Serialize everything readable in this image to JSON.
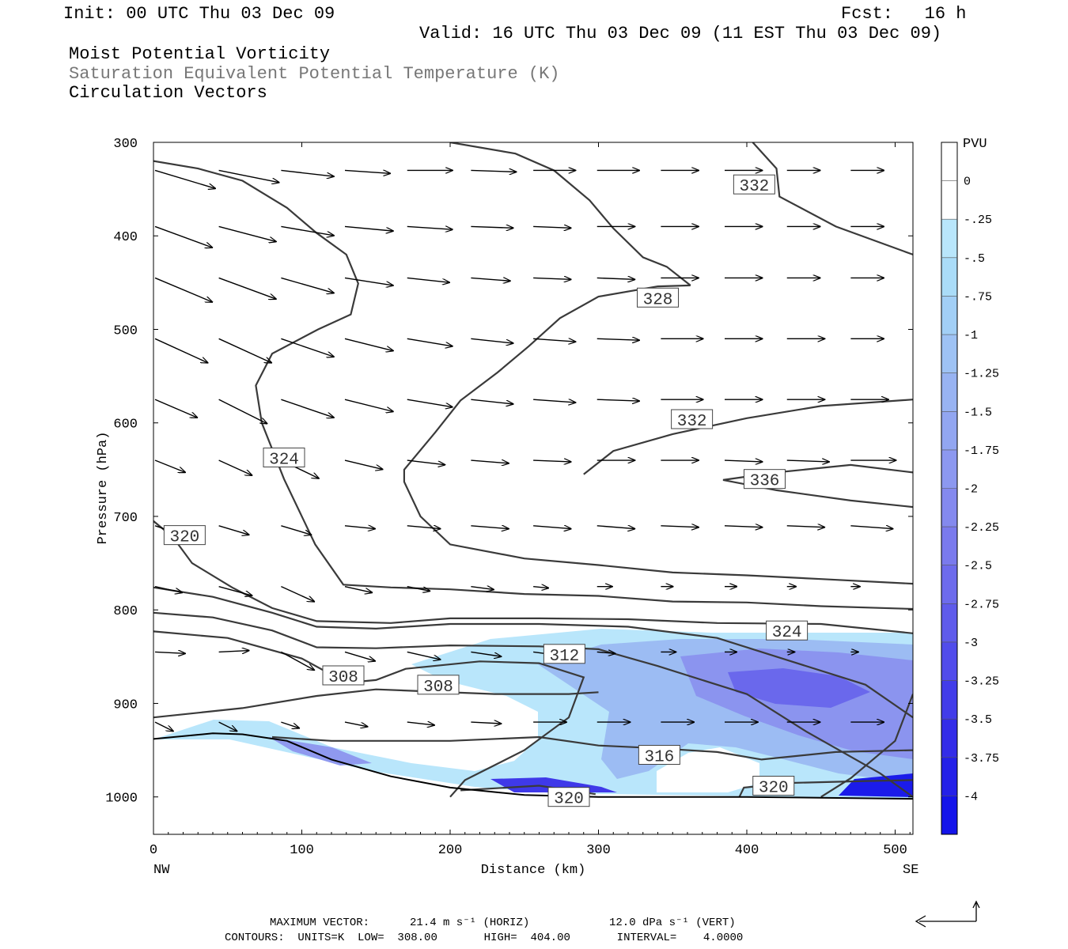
{
  "header": {
    "init": "Init: 00 UTC Thu 03 Dec 09",
    "fcst": "Fcst:   16 h",
    "valid": "Valid: 16 UTC Thu 03 Dec 09 (11 EST Thu 03 Dec 09)",
    "field1": "Moist Potential Vorticity",
    "field2": "Saturation Equivalent Potential Temperature (K)",
    "field3": "Circulation Vectors"
  },
  "footer": {
    "max_vector_label": "MAXIMUM VECTOR:",
    "max_vector_horiz": "21.4 m s⁻¹ (HORIZ)",
    "max_vector_vert": "12.0 dPa s⁻¹ (VERT)",
    "contours_line": "CONTOURS:  UNITS=K  LOW=  308.00       HIGH=  404.00       INTERVAL=    4.0000"
  },
  "chart_data": {
    "type": "cross-section",
    "xlabel": "Distance (km)",
    "ylabel": "Pressure (hPa)",
    "x_left_label": "NW",
    "x_right_label": "SE",
    "xlim": [
      0,
      512
    ],
    "ylim": [
      1040,
      300
    ],
    "x_ticks": [
      0,
      100,
      200,
      300,
      400,
      500
    ],
    "y_ticks": [
      300,
      400,
      500,
      600,
      700,
      800,
      900,
      1000
    ],
    "colorbar": {
      "title": "PVU",
      "labels": [
        "0",
        "-.25",
        "-.5",
        "-.75",
        "-1",
        "-1.25",
        "-1.5",
        "-1.75",
        "-2",
        "-2.25",
        "-2.5",
        "-2.75",
        "-3",
        "-3.25",
        "-3.5",
        "-3.75",
        "-4"
      ],
      "colors": [
        "#ffffff",
        "#ffffff",
        "#b9e6fb",
        "#aadcf8",
        "#a2cff6",
        "#9ec2f4",
        "#98b3f2",
        "#92a6f1",
        "#8c98f0",
        "#8489ee",
        "#7a7aed",
        "#6d6bec",
        "#5f5beb",
        "#514ceb",
        "#423ce9",
        "#332ce8",
        "#2420e8",
        "#1414ea"
      ]
    },
    "contour_labels": [
      {
        "value": "332",
        "x": 405,
        "p": 345
      },
      {
        "value": "328",
        "x": 340,
        "p": 466
      },
      {
        "value": "332",
        "x": 363,
        "p": 596
      },
      {
        "value": "336",
        "x": 412,
        "p": 660
      },
      {
        "value": "324",
        "x": 88,
        "p": 637
      },
      {
        "value": "320",
        "x": 21,
        "p": 720
      },
      {
        "value": "324",
        "x": 427,
        "p": 822
      },
      {
        "value": "308",
        "x": 128,
        "p": 870
      },
      {
        "value": "308",
        "x": 192,
        "p": 880
      },
      {
        "value": "312",
        "x": 277,
        "p": 847
      },
      {
        "value": "316",
        "x": 341,
        "p": 955
      },
      {
        "value": "320",
        "x": 280,
        "p": 1000
      },
      {
        "value": "320",
        "x": 418,
        "p": 988
      }
    ],
    "contours": [
      {
        "points": [
          [
            200,
            300
          ],
          [
            244,
            312
          ],
          [
            270,
            330
          ],
          [
            294,
            362
          ],
          [
            310,
            392
          ],
          [
            330,
            423
          ],
          [
            346,
            433
          ],
          [
            362,
            453
          ]
        ]
      },
      {
        "points": [
          [
            362,
            453
          ],
          [
            340,
            454
          ],
          [
            300,
            465
          ],
          [
            274,
            488
          ],
          [
            253,
            518
          ],
          [
            232,
            546
          ],
          [
            207,
            576
          ],
          [
            190,
            610
          ],
          [
            169,
            650
          ],
          [
            169,
            663
          ],
          [
            180,
            700
          ],
          [
            200,
            730
          ],
          [
            250,
            745
          ],
          [
            300,
            752
          ],
          [
            350,
            760
          ],
          [
            400,
            763
          ],
          [
            450,
            767
          ],
          [
            512,
            772
          ]
        ]
      },
      {
        "points": [
          [
            0,
            320
          ],
          [
            30,
            328
          ],
          [
            60,
            341
          ],
          [
            90,
            370
          ],
          [
            110,
            397
          ],
          [
            130,
            420
          ],
          [
            138,
            451
          ],
          [
            133,
            484
          ],
          [
            111,
            500
          ],
          [
            80,
            526
          ],
          [
            69,
            560
          ],
          [
            73,
            600
          ],
          [
            88,
            660
          ],
          [
            109,
            730
          ],
          [
            128,
            773
          ],
          [
            160,
            776
          ],
          [
            200,
            778
          ],
          [
            250,
            783
          ],
          [
            300,
            785
          ],
          [
            350,
            791
          ],
          [
            400,
            792
          ],
          [
            450,
            796
          ],
          [
            512,
            799
          ]
        ]
      },
      {
        "points": [
          [
            0,
            705
          ],
          [
            13,
            722
          ],
          [
            26,
            750
          ],
          [
            53,
            776
          ],
          [
            80,
            798
          ],
          [
            110,
            812
          ],
          [
            160,
            814
          ],
          [
            200,
            809
          ],
          [
            260,
            809
          ],
          [
            320,
            810
          ],
          [
            380,
            814
          ],
          [
            450,
            815
          ],
          [
            512,
            825
          ]
        ]
      },
      {
        "points": [
          [
            0,
            776
          ],
          [
            40,
            786
          ],
          [
            80,
            803
          ],
          [
            110,
            818
          ],
          [
            150,
            820
          ],
          [
            200,
            815
          ],
          [
            260,
            815
          ],
          [
            320,
            818
          ],
          [
            380,
            830
          ],
          [
            430,
            855
          ],
          [
            480,
            880
          ],
          [
            512,
            915
          ]
        ]
      },
      {
        "points": [
          [
            0,
            803
          ],
          [
            40,
            808
          ],
          [
            80,
            822
          ],
          [
            110,
            840
          ],
          [
            150,
            841
          ],
          [
            200,
            838
          ],
          [
            260,
            839
          ],
          [
            300,
            842
          ],
          [
            340,
            860
          ],
          [
            400,
            890
          ],
          [
            440,
            930
          ],
          [
            490,
            975
          ],
          [
            512,
            1000
          ]
        ]
      },
      {
        "points": [
          [
            0,
            823
          ],
          [
            50,
            830
          ],
          [
            100,
            852
          ],
          [
            130,
            878
          ],
          [
            150,
            875
          ],
          [
            170,
            863
          ],
          [
            220,
            855
          ],
          [
            260,
            857
          ],
          [
            290,
            872
          ],
          [
            280,
            915
          ],
          [
            250,
            950
          ],
          [
            210,
            982
          ],
          [
            200,
            1000
          ]
        ]
      },
      {
        "points": [
          [
            0,
            915
          ],
          [
            60,
            905
          ],
          [
            110,
            892
          ],
          [
            150,
            885
          ],
          [
            230,
            890
          ],
          [
            280,
            890
          ],
          [
            300,
            888
          ]
        ]
      },
      {
        "points": [
          [
            80,
            936
          ],
          [
            120,
            940
          ],
          [
            200,
            940
          ],
          [
            260,
            936
          ],
          [
            300,
            945
          ],
          [
            340,
            948
          ],
          [
            380,
            952
          ],
          [
            410,
            960
          ],
          [
            460,
            952
          ],
          [
            512,
            950
          ]
        ]
      },
      {
        "points": [
          [
            207,
            993
          ],
          [
            260,
            988
          ],
          [
            298,
            997
          ]
        ]
      },
      {
        "points": [
          [
            395,
            1000
          ],
          [
            398,
            990
          ],
          [
            430,
            985
          ],
          [
            480,
            983
          ],
          [
            512,
            982
          ]
        ]
      },
      {
        "points": [
          [
            512,
            890
          ],
          [
            500,
            940
          ],
          [
            470,
            980
          ],
          [
            450,
            1000
          ]
        ]
      },
      {
        "points": [
          [
            512,
            690
          ],
          [
            470,
            683
          ],
          [
            420,
            672
          ],
          [
            384,
            661
          ],
          [
            420,
            653
          ],
          [
            470,
            645
          ],
          [
            512,
            653
          ]
        ]
      },
      {
        "points": [
          [
            290,
            655
          ],
          [
            310,
            630
          ],
          [
            350,
            612
          ],
          [
            400,
            595
          ],
          [
            450,
            582
          ],
          [
            512,
            575
          ]
        ]
      },
      {
        "points": [
          [
            404,
            300
          ],
          [
            420,
            328
          ],
          [
            422,
            358
          ],
          [
            460,
            390
          ],
          [
            512,
            420
          ]
        ]
      }
    ],
    "ground_line": [
      [
        0,
        938
      ],
      [
        40,
        932
      ],
      [
        60,
        933
      ],
      [
        90,
        940
      ],
      [
        120,
        960
      ],
      [
        160,
        978
      ],
      [
        200,
        990
      ],
      [
        250,
        998
      ],
      [
        300,
        1000
      ],
      [
        400,
        1000
      ],
      [
        512,
        1002
      ]
    ],
    "vector_rows": [
      {
        "p": 330,
        "xs": [
          0,
          43,
          85,
          128,
          170,
          213,
          255,
          298,
          341,
          384,
          426,
          469
        ],
        "u": [
          40,
          40,
          35,
          30,
          30,
          30,
          28,
          28,
          25,
          25,
          22,
          22
        ],
        "v": [
          -12,
          -8,
          -4,
          -2,
          0,
          -1,
          0,
          0,
          0,
          0,
          0,
          0
        ]
      },
      {
        "p": 390,
        "xs": [
          0,
          43,
          85,
          128,
          170,
          213,
          255,
          298,
          341,
          384,
          426,
          469
        ],
        "u": [
          38,
          38,
          35,
          32,
          30,
          28,
          25,
          25,
          25,
          25,
          22,
          22
        ],
        "v": [
          -14,
          -10,
          -6,
          -3,
          -2,
          -1,
          -1,
          0,
          0,
          0,
          0,
          0
        ]
      },
      {
        "p": 445,
        "xs": [
          0,
          43,
          85,
          128,
          170,
          213,
          255,
          298,
          341,
          384,
          426,
          469
        ],
        "u": [
          38,
          38,
          35,
          32,
          28,
          26,
          25,
          25,
          25,
          25,
          22,
          22
        ],
        "v": [
          -16,
          -14,
          -10,
          -5,
          -3,
          -2,
          -1,
          -1,
          0,
          0,
          0,
          0
        ]
      },
      {
        "p": 510,
        "xs": [
          0,
          43,
          85,
          128,
          170,
          213,
          255,
          298,
          341,
          384,
          426,
          469
        ],
        "u": [
          35,
          35,
          35,
          32,
          30,
          28,
          28,
          28,
          28,
          25,
          25,
          22
        ],
        "v": [
          -16,
          -16,
          -12,
          -8,
          -5,
          -3,
          -2,
          -1,
          0,
          0,
          0,
          0
        ]
      },
      {
        "p": 575,
        "xs": [
          0,
          43,
          85,
          128,
          170,
          213,
          255,
          298,
          341,
          384,
          426,
          469
        ],
        "u": [
          28,
          32,
          35,
          32,
          30,
          28,
          28,
          28,
          28,
          25,
          25,
          25
        ],
        "v": [
          -12,
          -16,
          -12,
          -8,
          -5,
          -3,
          -2,
          -1,
          0,
          0,
          0,
          0
        ]
      },
      {
        "p": 640,
        "xs": [
          0,
          43,
          85,
          128,
          170,
          213,
          255,
          298,
          341,
          384,
          426,
          469
        ],
        "u": [
          20,
          22,
          25,
          25,
          25,
          25,
          25,
          25,
          25,
          25,
          28,
          30
        ],
        "v": [
          -8,
          -10,
          -12,
          -6,
          -3,
          -2,
          -1,
          0,
          0,
          -1,
          -1,
          0
        ]
      },
      {
        "p": 710,
        "xs": [
          0,
          43,
          85,
          128,
          170,
          213,
          255,
          298,
          341,
          384,
          426,
          469
        ],
        "u": [
          18,
          20,
          20,
          20,
          22,
          25,
          25,
          25,
          25,
          25,
          25,
          28
        ],
        "v": [
          -6,
          -6,
          -6,
          -2,
          -2,
          -2,
          -2,
          -2,
          -1,
          -1,
          -1,
          -2
        ]
      },
      {
        "p": 775,
        "xs": [
          0,
          43,
          85,
          128,
          170,
          213,
          255,
          298,
          341,
          384,
          426,
          469
        ],
        "u": [
          18,
          22,
          22,
          18,
          15,
          15,
          10,
          10,
          8,
          8,
          6,
          6
        ],
        "v": [
          -4,
          -6,
          -10,
          -4,
          -3,
          -2,
          -1,
          0,
          0,
          0,
          0,
          0
        ]
      },
      {
        "p": 845,
        "xs": [
          0,
          43,
          85,
          128,
          170,
          213,
          255,
          298,
          341,
          384,
          426,
          469
        ],
        "u": [
          20,
          20,
          22,
          20,
          22,
          20,
          15,
          12,
          10,
          8,
          5,
          5
        ],
        "v": [
          -1,
          1,
          -12,
          -6,
          -5,
          -3,
          -2,
          -1,
          0,
          0,
          0,
          0
        ]
      },
      {
        "p": 920,
        "xs": [
          0,
          43,
          85,
          128,
          170,
          213,
          255,
          298,
          341,
          384,
          426,
          469
        ],
        "u": [
          12,
          12,
          12,
          15,
          18,
          20,
          22,
          22,
          22,
          22,
          22,
          22
        ],
        "v": [
          -6,
          -6,
          -4,
          -3,
          -2,
          -1,
          0,
          0,
          0,
          0,
          0,
          0
        ]
      }
    ]
  }
}
